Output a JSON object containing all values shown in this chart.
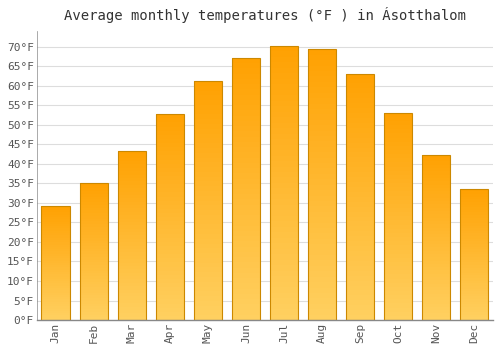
{
  "title": "Average monthly temperatures (°F ) in Ásotthalom",
  "months": [
    "Jan",
    "Feb",
    "Mar",
    "Apr",
    "May",
    "Jun",
    "Jul",
    "Aug",
    "Sep",
    "Oct",
    "Nov",
    "Dec"
  ],
  "values": [
    29.3,
    35.1,
    43.3,
    52.7,
    61.2,
    67.1,
    70.2,
    69.3,
    63.1,
    53.1,
    42.3,
    33.6
  ],
  "bar_color_top": "#FFA500",
  "bar_color_bottom": "#FFD060",
  "bar_edge_color": "#CC8800",
  "background_color": "#FFFFFF",
  "grid_color": "#DDDDDD",
  "text_color": "#555555",
  "yticks": [
    0,
    5,
    10,
    15,
    20,
    25,
    30,
    35,
    40,
    45,
    50,
    55,
    60,
    65,
    70
  ],
  "ylim": [
    0,
    74
  ],
  "title_fontsize": 10,
  "tick_fontsize": 8,
  "font_family": "monospace"
}
